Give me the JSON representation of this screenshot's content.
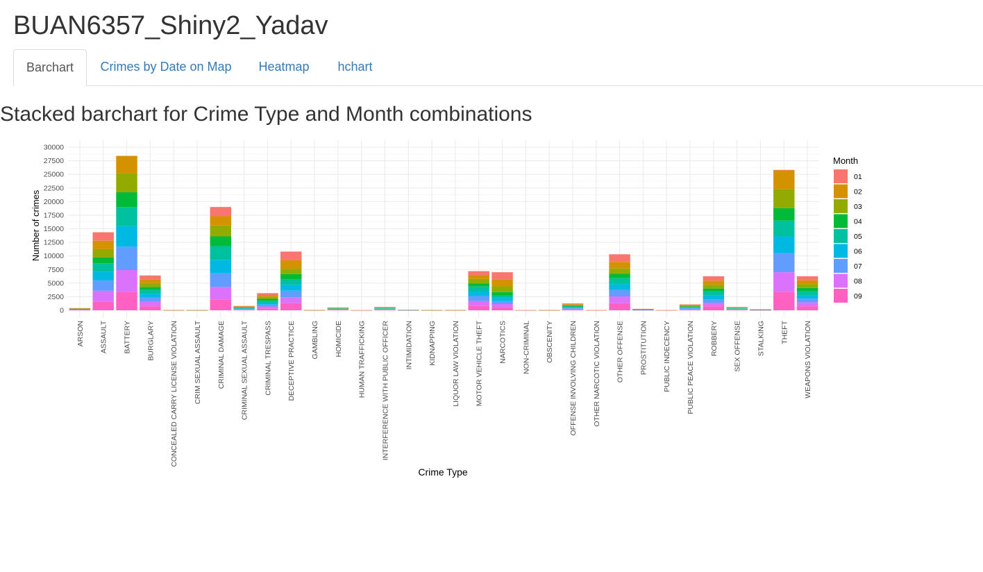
{
  "app": {
    "title": "BUAN6357_Shiny2_Yadav"
  },
  "tabs": [
    {
      "label": "Barchart",
      "active": true
    },
    {
      "label": "Crimes by Date on Map",
      "active": false
    },
    {
      "label": "Heatmap",
      "active": false
    },
    {
      "label": "hchart",
      "active": false
    }
  ],
  "section": {
    "title": "Stacked barchart for Crime Type and Month combinations"
  },
  "chart_data": {
    "type": "bar",
    "stacked": true,
    "title": "",
    "xlabel": "Crime Type",
    "ylabel": "Number of crimes",
    "ylim": [
      0,
      30000
    ],
    "yticks": [
      0,
      2500,
      5000,
      7500,
      10000,
      12500,
      15000,
      17500,
      20000,
      22500,
      25000,
      27500,
      30000
    ],
    "grid": true,
    "legend": {
      "title": "Month",
      "position": "right"
    },
    "categories": [
      "ARSON",
      "ASSAULT",
      "BATTERY",
      "BURGLARY",
      "CONCEALED CARRY LICENSE VIOLATION",
      "CRIM SEXUAL ASSAULT",
      "CRIMINAL DAMAGE",
      "CRIMINAL SEXUAL ASSAULT",
      "CRIMINAL TRESPASS",
      "DECEPTIVE PRACTICE",
      "GAMBLING",
      "HOMICIDE",
      "HUMAN TRAFFICKING",
      "INTERFERENCE WITH PUBLIC OFFICER",
      "INTIMIDATION",
      "KIDNAPPING",
      "LIQUOR LAW VIOLATION",
      "MOTOR VEHICLE THEFT",
      "NARCOTICS",
      "NON-CRIMINAL",
      "OBSCENITY",
      "OFFENSE INVOLVING CHILDREN",
      "OTHER NARCOTIC VIOLATION",
      "OTHER OFFENSE",
      "PROSTITUTION",
      "PUBLIC INDECENCY",
      "PUBLIC PEACE VIOLATION",
      "ROBBERY",
      "SEX OFFENSE",
      "STALKING",
      "THEFT",
      "WEAPONS VIOLATION"
    ],
    "series": [
      {
        "name": "01",
        "color": "#F8766D",
        "values": [
          45,
          1550,
          1,
          700,
          3,
          5,
          1700,
          90,
          350,
          1600,
          3,
          60,
          1,
          70,
          10,
          5,
          3,
          700,
          1300,
          1,
          3,
          140,
          1,
          1400,
          30,
          1,
          120,
          800,
          70,
          20,
          1,
          750
        ]
      },
      {
        "name": "02",
        "color": "#D39200",
        "values": [
          45,
          1550,
          3200,
          700,
          3,
          5,
          1700,
          90,
          350,
          1550,
          3,
          60,
          1,
          70,
          10,
          5,
          3,
          720,
          1300,
          1,
          3,
          140,
          1,
          1200,
          30,
          1,
          120,
          750,
          70,
          20,
          3500,
          700
        ]
      },
      {
        "name": "03",
        "color": "#93AA00",
        "values": [
          45,
          1550,
          3500,
          700,
          3,
          5,
          2000,
          90,
          350,
          1000,
          3,
          60,
          1,
          70,
          10,
          5,
          3,
          820,
          1050,
          1,
          3,
          140,
          1,
          1000,
          30,
          1,
          120,
          700,
          70,
          20,
          3500,
          700
        ]
      },
      {
        "name": "04",
        "color": "#00BA38",
        "values": [
          45,
          1050,
          2700,
          550,
          3,
          5,
          1800,
          90,
          350,
          950,
          3,
          60,
          1,
          70,
          10,
          5,
          3,
          580,
          600,
          1,
          3,
          140,
          1,
          800,
          30,
          1,
          120,
          500,
          70,
          20,
          2300,
          600
        ]
      },
      {
        "name": "05",
        "color": "#00C19F",
        "values": [
          45,
          1550,
          3500,
          700,
          3,
          5,
          2500,
          90,
          350,
          1000,
          3,
          60,
          1,
          70,
          10,
          5,
          3,
          870,
          500,
          1,
          3,
          140,
          1,
          1100,
          30,
          1,
          120,
          800,
          70,
          20,
          2900,
          700
        ]
      },
      {
        "name": "06",
        "color": "#00B9E3",
        "values": [
          45,
          1650,
          3800,
          700,
          3,
          5,
          2500,
          90,
          350,
          1100,
          3,
          60,
          1,
          70,
          10,
          5,
          3,
          900,
          550,
          1,
          3,
          140,
          1,
          1050,
          30,
          1,
          120,
          700,
          70,
          20,
          3100,
          650
        ]
      },
      {
        "name": "07",
        "color": "#619CFF",
        "values": [
          45,
          1850,
          4300,
          800,
          3,
          5,
          2500,
          90,
          350,
          1200,
          3,
          60,
          1,
          70,
          10,
          5,
          3,
          900,
          550,
          1,
          3,
          140,
          1,
          1200,
          30,
          1,
          120,
          650,
          70,
          20,
          3500,
          700
        ]
      },
      {
        "name": "08",
        "color": "#DB72FB",
        "values": [
          45,
          2050,
          4000,
          800,
          3,
          5,
          2300,
          90,
          350,
          1100,
          3,
          60,
          1,
          70,
          10,
          5,
          3,
          850,
          550,
          1,
          3,
          140,
          1,
          1250,
          30,
          1,
          120,
          600,
          70,
          20,
          3600,
          700
        ]
      },
      {
        "name": "09",
        "color": "#FF61C3",
        "values": [
          45,
          1550,
          3400,
          750,
          3,
          5,
          2000,
          90,
          350,
          1300,
          3,
          60,
          1,
          70,
          10,
          5,
          3,
          860,
          600,
          1,
          3,
          140,
          1,
          1300,
          30,
          1,
          120,
          750,
          70,
          20,
          3400,
          750
        ]
      }
    ]
  }
}
